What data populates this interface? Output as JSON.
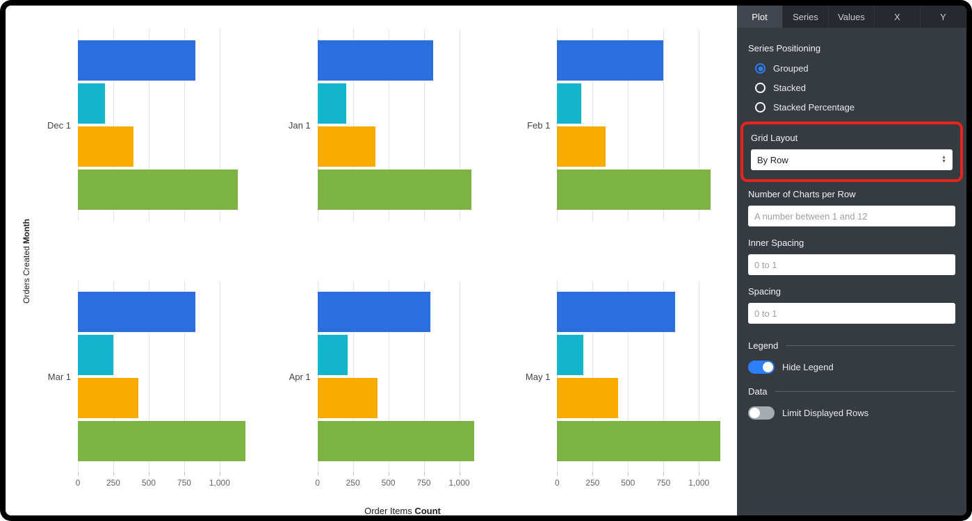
{
  "colors": {
    "accent_blue": "#2d7ff9",
    "annotation_red": "#e8251d",
    "panel_background": "#363b42"
  },
  "config_panel": {
    "tabs": [
      {
        "label": "Plot",
        "active": true
      },
      {
        "label": "Series",
        "active": false
      },
      {
        "label": "Values",
        "active": false
      },
      {
        "label": "X",
        "active": false
      },
      {
        "label": "Y",
        "active": false
      }
    ],
    "series_positioning": {
      "label": "Series Positioning",
      "options": [
        {
          "label": "Grouped",
          "selected": true
        },
        {
          "label": "Stacked",
          "selected": false
        },
        {
          "label": "Stacked Percentage",
          "selected": false
        }
      ]
    },
    "grid_layout": {
      "label": "Grid Layout",
      "value": "By Row"
    },
    "charts_per_row": {
      "label": "Number of Charts per Row",
      "value": "",
      "placeholder": "A number between 1 and 12"
    },
    "inner_spacing": {
      "label": "Inner Spacing",
      "value": "",
      "placeholder": "0 to 1"
    },
    "spacing": {
      "label": "Spacing",
      "value": "",
      "placeholder": "0 to 1"
    },
    "legend_section": {
      "label": "Legend",
      "hide_legend": {
        "label": "Hide Legend",
        "on": true
      }
    },
    "data_section": {
      "label": "Data",
      "limit_rows": {
        "label": "Limit Displayed Rows",
        "on": false
      }
    }
  },
  "chart_data": {
    "type": "bar",
    "orientation": "horizontal",
    "title": "",
    "xlabel": "Order Items Count",
    "xlabel_regular": "Order Items ",
    "xlabel_bold": "Count",
    "ylabel": "Orders Created Month",
    "ylabel_regular": "Orders Created ",
    "ylabel_bold": "Month",
    "x_ticks": [
      "0",
      "250",
      "500",
      "750",
      "1,000"
    ],
    "x_tick_values": [
      0,
      250,
      500,
      750,
      1000
    ],
    "xlim": [
      0,
      1200
    ],
    "grid": true,
    "legend": "hidden",
    "series_colors": [
      "#2b6fde",
      "#12b5cb",
      "#f9ab00",
      "#7cb342"
    ],
    "charts": [
      {
        "label": "Dec 1",
        "values": [
          830,
          190,
          390,
          1130
        ]
      },
      {
        "label": "Jan 1",
        "values": [
          815,
          205,
          410,
          1085
        ]
      },
      {
        "label": "Feb 1",
        "values": [
          750,
          170,
          340,
          1080
        ]
      },
      {
        "label": "Mar 1",
        "values": [
          830,
          250,
          425,
          1180
        ]
      },
      {
        "label": "Apr 1",
        "values": [
          795,
          215,
          425,
          1105
        ]
      },
      {
        "label": "May 1",
        "values": [
          830,
          185,
          430,
          1150
        ]
      }
    ]
  }
}
